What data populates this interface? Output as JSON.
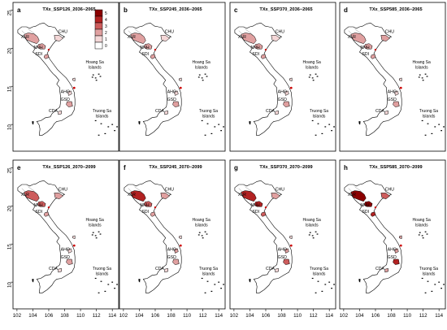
{
  "axes": {
    "x_ticks": [
      "102",
      "104",
      "106",
      "108",
      "110",
      "112",
      "114"
    ],
    "y_ticks": [
      "10",
      "15",
      "20",
      "25"
    ]
  },
  "legend": {
    "values": [
      "5",
      "4",
      "3",
      "2",
      "1",
      "0"
    ],
    "colors": [
      "#8b0000",
      "#b22222",
      "#cd5c5c",
      "#e0a0a0",
      "#f4d7d7",
      "#ffffff"
    ]
  },
  "region_labels": {
    "XLR": "XLR",
    "CHU": "CHU",
    "NNH": "NNH",
    "SDI": "SDI",
    "AHO": "AHO",
    "GSD": "GSD",
    "CDA": "CDA",
    "hoang_sa": [
      "Hoang Sa",
      "Islands"
    ],
    "truong_sa": [
      "Truong Sa",
      "Islands"
    ]
  },
  "panels": [
    {
      "letter": "a",
      "title": "TXx_SSP126_2036−2065",
      "intensity": {
        "XLR": 2,
        "CHU": 1,
        "NNH": 2,
        "SDI": 2,
        "AHO": 1,
        "GSD": 2,
        "CDA": 1,
        "MR": 1
      }
    },
    {
      "letter": "b",
      "title": "TXx_SSP245_2036−2065",
      "intensity": {
        "XLR": 2,
        "CHU": 1,
        "NNH": 2,
        "SDI": 2,
        "AHO": 1,
        "GSD": 2,
        "CDA": 1,
        "MR": 1
      }
    },
    {
      "letter": "c",
      "title": "TXx_SSP370_2036−2065",
      "intensity": {
        "XLR": 2,
        "CHU": 1,
        "NNH": 2,
        "SDI": 2,
        "AHO": 1,
        "GSD": 2,
        "CDA": 1,
        "MR": 1
      }
    },
    {
      "letter": "d",
      "title": "TXx_SSP585_2036−2065",
      "intensity": {
        "XLR": 2,
        "CHU": 2,
        "NNH": 2,
        "SDI": 2,
        "AHO": 1,
        "GSD": 2,
        "CDA": 1,
        "MR": 1
      }
    },
    {
      "letter": "e",
      "title": "TXx_SSP126_2070−2099",
      "intensity": {
        "XLR": 3,
        "CHU": 2,
        "NNH": 3,
        "SDI": 2,
        "AHO": 1,
        "GSD": 2,
        "CDA": 1,
        "MR": 1
      }
    },
    {
      "letter": "f",
      "title": "TXx_SSP245_2070−2099",
      "intensity": {
        "XLR": 4,
        "CHU": 2,
        "NNH": 3,
        "SDI": 2,
        "AHO": 2,
        "GSD": 2,
        "CDA": 1,
        "MR": 1
      }
    },
    {
      "letter": "g",
      "title": "TXx_SSP370_2070−2099",
      "intensity": {
        "XLR": 4,
        "CHU": 2,
        "NNH": 4,
        "SDI": 3,
        "AHO": 2,
        "GSD": 3,
        "CDA": 1,
        "MR": 1
      }
    },
    {
      "letter": "h",
      "title": "TXx_SSP585_2070−2099",
      "intensity": {
        "XLR": 5,
        "CHU": 3,
        "NNH": 5,
        "SDI": 4,
        "AHO": 2,
        "GSD": 4,
        "CDA": 2,
        "MR": 2
      }
    }
  ]
}
